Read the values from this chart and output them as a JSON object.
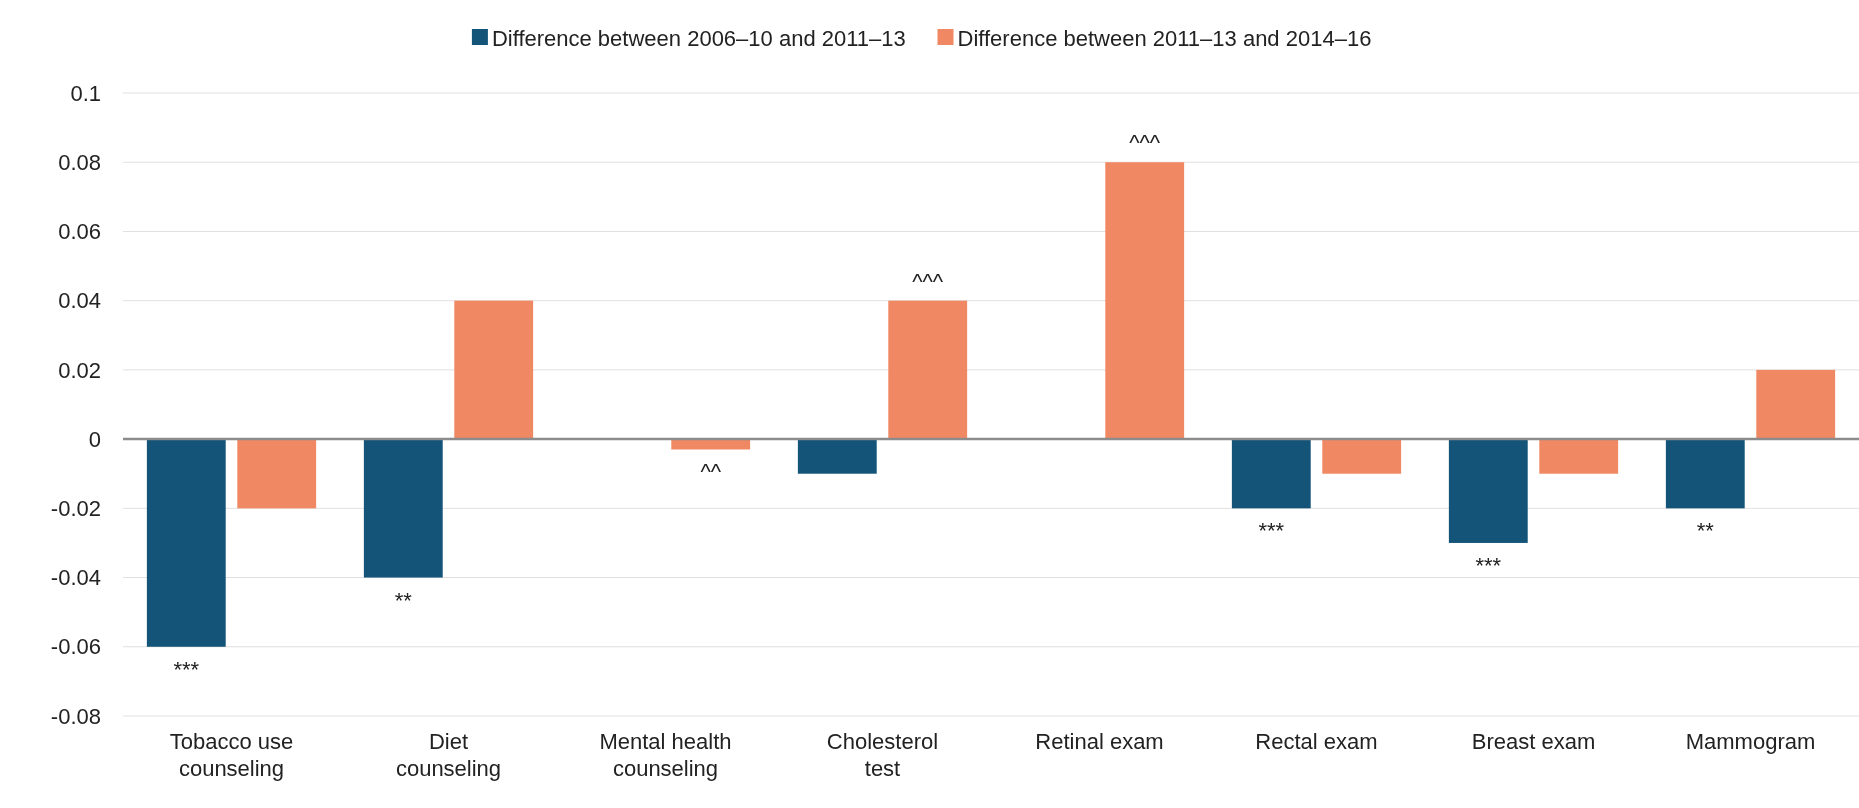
{
  "chart_data": {
    "type": "bar",
    "categories": [
      "Tobacco use counseling",
      "Diet counseling",
      "Mental health counseling",
      "Cholesterol test",
      "Retinal exam",
      "Rectal exam",
      "Breast exam",
      "Mammogram"
    ],
    "series": [
      {
        "name": "Difference between 2006–10 and 2011–13",
        "color": "#135478",
        "values": [
          -0.06,
          -0.04,
          0,
          -0.01,
          0,
          -0.02,
          -0.03,
          -0.02
        ]
      },
      {
        "name": "Difference between 2011–13 and 2014–16",
        "color": "#f08963",
        "values": [
          -0.02,
          0.04,
          -0.003,
          0.04,
          0.08,
          -0.01,
          -0.01,
          0.02
        ]
      }
    ],
    "ylim": [
      -0.08,
      0.1
    ],
    "yticks": [
      -0.08,
      -0.06,
      -0.04,
      -0.02,
      0,
      0.02,
      0.04,
      0.06,
      0.08,
      0.1
    ],
    "grid": "y",
    "legend": "top",
    "annotations": [
      "***",
      "**",
      "^^",
      "^^^",
      "^^^",
      "***",
      "***",
      "**"
    ]
  }
}
